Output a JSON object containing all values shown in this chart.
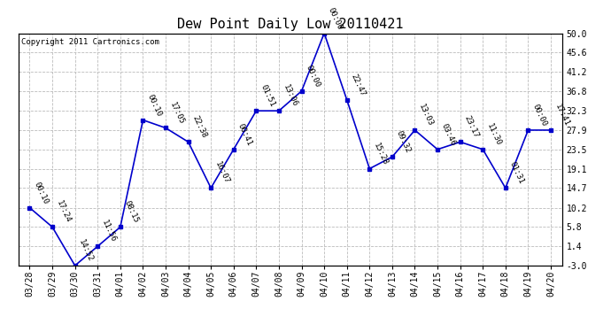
{
  "title": "Dew Point Daily Low 20110421",
  "copyright": "Copyright 2011 Cartronics.com",
  "x_labels": [
    "03/28",
    "03/29",
    "03/30",
    "03/31",
    "04/01",
    "04/02",
    "04/03",
    "04/04",
    "04/05",
    "04/06",
    "04/07",
    "04/08",
    "04/09",
    "04/10",
    "04/11",
    "04/12",
    "04/13",
    "04/14",
    "04/15",
    "04/16",
    "04/17",
    "04/18",
    "04/19",
    "04/20"
  ],
  "y_values": [
    10.2,
    5.8,
    -3.0,
    1.4,
    5.8,
    30.2,
    28.4,
    25.2,
    14.7,
    23.5,
    32.3,
    32.3,
    36.8,
    50.0,
    34.8,
    19.1,
    21.8,
    27.9,
    23.5,
    25.2,
    23.5,
    14.7,
    27.9,
    27.9
  ],
  "point_labels": [
    "00:10",
    "17:24",
    "14:52",
    "11:56",
    "08:15",
    "00:10",
    "17:05",
    "22:38",
    "16:07",
    "00:41",
    "01:51",
    "13:06",
    "00:00",
    "00:00",
    "22:47",
    "15:28",
    "09:32",
    "13:03",
    "03:46",
    "23:17",
    "11:30",
    "01:31",
    "00:00",
    "17:41"
  ],
  "ylim": [
    -3.0,
    50.0
  ],
  "y_ticks": [
    -3.0,
    1.4,
    5.8,
    10.2,
    14.7,
    19.1,
    23.5,
    27.9,
    32.3,
    36.8,
    41.2,
    45.6,
    50.0
  ],
  "y_tick_labels": [
    "-3.0",
    "1.4",
    "5.8",
    "10.2",
    "14.7",
    "19.1",
    "23.5",
    "27.9",
    "32.3",
    "36.8",
    "41.2",
    "45.6",
    "50.0"
  ],
  "line_color": "#0000cc",
  "marker_color": "#0000cc",
  "background_color": "#ffffff",
  "grid_color": "#bbbbbb",
  "title_fontsize": 11,
  "label_fontsize": 6.5,
  "tick_fontsize": 7,
  "copyright_fontsize": 6.5
}
